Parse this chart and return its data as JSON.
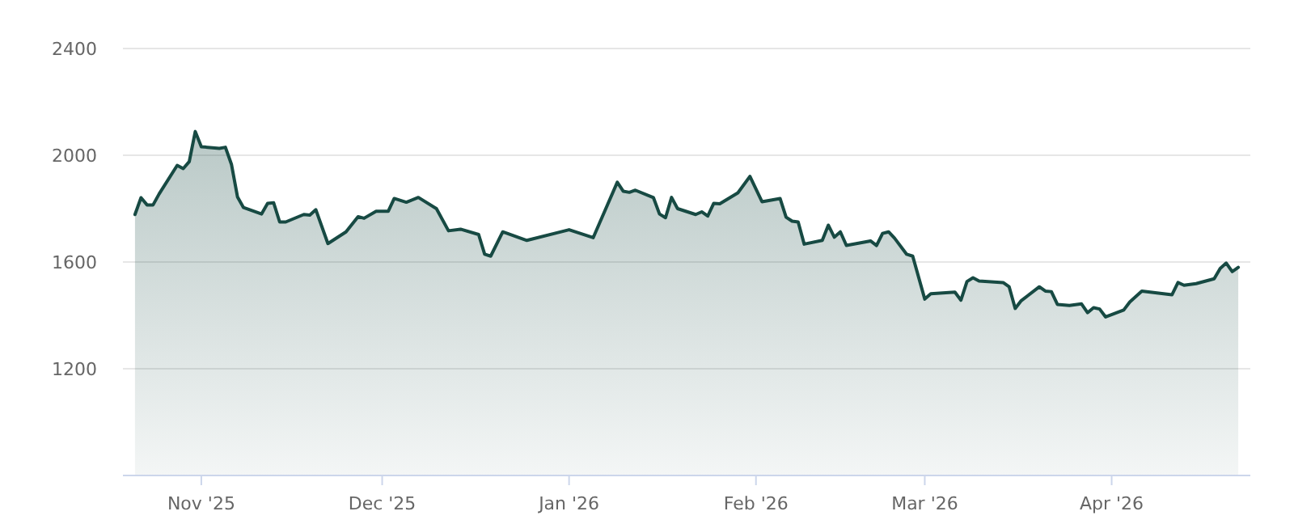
{
  "chart_data": {
    "type": "area",
    "x": [
      "2025-10-21",
      "2025-10-22",
      "2025-10-23",
      "2025-10-24",
      "2025-10-25",
      "2025-10-28",
      "2025-10-29",
      "2025-10-30",
      "2025-10-31",
      "2025-11-01",
      "2025-11-04",
      "2025-11-05",
      "2025-11-06",
      "2025-11-07",
      "2025-11-08",
      "2025-11-11",
      "2025-11-12",
      "2025-11-13",
      "2025-11-14",
      "2025-11-15",
      "2025-11-18",
      "2025-11-19",
      "2025-11-20",
      "2025-11-22",
      "2025-11-25",
      "2025-11-27",
      "2025-11-28",
      "2025-11-30",
      "2025-12-02",
      "2025-12-03",
      "2025-12-05",
      "2025-12-07",
      "2025-12-10",
      "2025-12-12",
      "2025-12-14",
      "2025-12-17",
      "2025-12-18",
      "2025-12-19",
      "2025-12-21",
      "2025-12-25",
      "2026-01-01",
      "2026-01-05",
      "2026-01-09",
      "2026-01-10",
      "2026-01-11",
      "2026-01-12",
      "2026-01-15",
      "2026-01-16",
      "2026-01-17",
      "2026-01-18",
      "2026-01-19",
      "2026-01-22",
      "2026-01-23",
      "2026-01-24",
      "2026-01-25",
      "2026-01-26",
      "2026-01-29",
      "2026-01-31",
      "2026-02-02",
      "2026-02-05",
      "2026-02-06",
      "2026-02-07",
      "2026-02-08",
      "2026-02-09",
      "2026-02-12",
      "2026-02-13",
      "2026-02-14",
      "2026-02-15",
      "2026-02-16",
      "2026-02-20",
      "2026-02-21",
      "2026-02-22",
      "2026-02-23",
      "2026-02-24",
      "2026-02-26",
      "2026-02-27",
      "2026-03-01",
      "2026-03-02",
      "2026-03-06",
      "2026-03-07",
      "2026-03-08",
      "2026-03-09",
      "2026-03-10",
      "2026-03-14",
      "2026-03-15",
      "2026-03-16",
      "2026-03-17",
      "2026-03-20",
      "2026-03-21",
      "2026-03-22",
      "2026-03-23",
      "2026-03-25",
      "2026-03-27",
      "2026-03-28",
      "2026-03-29",
      "2026-03-30",
      "2026-03-31",
      "2026-04-03",
      "2026-04-04",
      "2026-04-06",
      "2026-04-11",
      "2026-04-12",
      "2026-04-13",
      "2026-04-15",
      "2026-04-18",
      "2026-04-19",
      "2026-04-20",
      "2026-04-21",
      "2026-04-22"
    ],
    "series": [
      {
        "color": "#174a43",
        "values": [
          1778,
          1841,
          1814,
          1814,
          1855,
          1962,
          1950,
          1976,
          2089,
          2032,
          2026,
          2030,
          1966,
          1844,
          1804,
          1780,
          1820,
          1822,
          1750,
          1750,
          1778,
          1776,
          1796,
          1669,
          1713,
          1770,
          1764,
          1790,
          1790,
          1838,
          1824,
          1842,
          1800,
          1717,
          1723,
          1703,
          1629,
          1622,
          1713,
          1681,
          1721,
          1691,
          1899,
          1865,
          1861,
          1869,
          1841,
          1780,
          1766,
          1842,
          1800,
          1778,
          1788,
          1772,
          1820,
          1818,
          1859,
          1921,
          1826,
          1838,
          1768,
          1753,
          1750,
          1667,
          1681,
          1738,
          1693,
          1713,
          1662,
          1679,
          1662,
          1707,
          1713,
          1689,
          1629,
          1622,
          1461,
          1481,
          1487,
          1457,
          1527,
          1541,
          1529,
          1523,
          1507,
          1426,
          1455,
          1507,
          1491,
          1489,
          1441,
          1437,
          1443,
          1410,
          1429,
          1424,
          1394,
          1420,
          1450,
          1491,
          1477,
          1523,
          1513,
          1519,
          1537,
          1576,
          1596,
          1564,
          1580
        ]
      }
    ],
    "xlim": [
      "2025-10-19",
      "2026-04-24"
    ],
    "xticks": [
      {
        "value": "2025-11-01",
        "label": "Nov '25"
      },
      {
        "value": "2025-12-01",
        "label": "Dec '25"
      },
      {
        "value": "2026-01-01",
        "label": "Jan '26"
      },
      {
        "value": "2026-02-01",
        "label": "Feb '26"
      },
      {
        "value": "2026-03-01",
        "label": "Mar '26"
      },
      {
        "value": "2026-04-01",
        "label": "Apr '26"
      }
    ],
    "ylim": [
      800,
      2400
    ],
    "yticks": [
      1200,
      1600,
      2000,
      2400
    ],
    "grid": "y"
  }
}
